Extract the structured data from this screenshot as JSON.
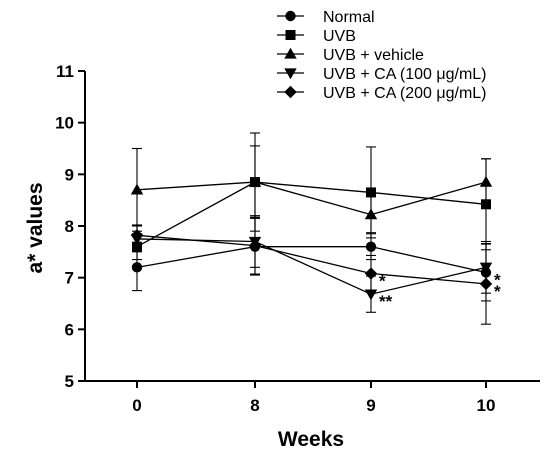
{
  "chart_data": {
    "type": "line",
    "xlabel": "Weeks",
    "ylabel": "a* values",
    "categories": [
      "0",
      "8",
      "9",
      "10"
    ],
    "ylim": [
      5,
      11
    ],
    "yticks": [
      5,
      6,
      7,
      8,
      9,
      10,
      11
    ],
    "legend_position": "top-right",
    "grid": false,
    "series": [
      {
        "name": "Normal",
        "marker": "circle",
        "values": [
          7.2,
          7.6,
          7.6,
          7.1
        ],
        "errors": [
          0.45,
          0.55,
          0.25,
          0.55
        ]
      },
      {
        "name": "UVB",
        "marker": "square",
        "values": [
          7.6,
          8.85,
          8.65,
          8.42
        ],
        "errors": [
          0.25,
          0.95,
          0.88,
          0.88
        ]
      },
      {
        "name": "UVB + vehicle",
        "marker": "triangle-up",
        "values": [
          8.7,
          8.85,
          8.22,
          8.85
        ],
        "errors": [
          0.8,
          0.7,
          0.35,
          0.45
        ]
      },
      {
        "name": "UVB + CA (100 μg/mL)",
        "marker": "triangle-down",
        "values": [
          7.75,
          7.7,
          6.68,
          7.2
        ],
        "errors": [
          0.25,
          0.5,
          0.35,
          0.5
        ]
      },
      {
        "name": "UVB + CA (200 μg/mL)",
        "marker": "diamond",
        "values": [
          7.82,
          7.62,
          7.08,
          6.88
        ],
        "errors": [
          0.2,
          0.55,
          0.35,
          0.78
        ]
      }
    ],
    "annotations": [
      {
        "category": "9",
        "value": 7.08,
        "text": "*"
      },
      {
        "category": "9",
        "value": 6.68,
        "text": "**"
      },
      {
        "category": "10",
        "value": 7.1,
        "text": "*"
      },
      {
        "category": "10",
        "value": 6.88,
        "text": "*"
      }
    ]
  }
}
